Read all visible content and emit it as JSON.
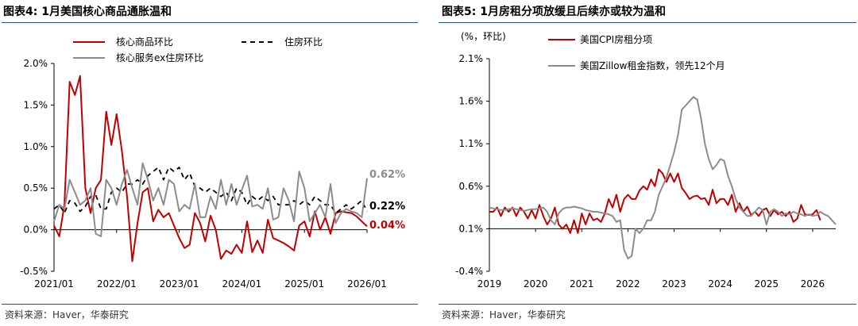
{
  "left_panel": {
    "title": "图表4:  1月美国核心商品通胀温和",
    "source": "资料来源：Haver，华泰研究"
  },
  "right_panel": {
    "title": "图表5:  1月房租分项放缓且后续亦或较为温和",
    "source": "资料来源：Haver，华泰研究"
  },
  "colors": {
    "red": "#c00000",
    "gray": "#8c8c8c",
    "black": "#000000",
    "rule": "#1f4e96"
  },
  "chart_data": [
    {
      "type": "line",
      "title": "1月美国核心商品通胀温和",
      "ylim": [
        -0.5,
        2.0
      ],
      "yticks": [
        -0.5,
        0.0,
        0.5,
        1.0,
        1.5,
        2.0
      ],
      "ytick_labels": [
        "-0.5%",
        "0.0%",
        "0.5%",
        "1.0%",
        "1.5%",
        "2.0%"
      ],
      "x_start": "2021/01",
      "xtick_labels": [
        "2021/01",
        "2022/01",
        "2023/01",
        "2024/01",
        "2025/01",
        "2026/01"
      ],
      "xtick_positions": [
        0,
        12,
        24,
        36,
        48,
        60
      ],
      "x_max": 60,
      "series": [
        {
          "name": "核心商品环比",
          "color": "#c00000",
          "style": "solid",
          "end_label": "0.04%",
          "values": [
            0.05,
            -0.08,
            0.3,
            1.78,
            1.62,
            1.85,
            0.5,
            0.2,
            0.5,
            0.6,
            1.42,
            1.02,
            1.39,
            0.95,
            0.4,
            -0.38,
            0.08,
            0.45,
            0.5,
            0.1,
            0.24,
            0.15,
            0.2,
            0.05,
            -0.1,
            -0.22,
            -0.18,
            0.2,
            0.08,
            -0.14,
            0.17,
            0.0,
            -0.35,
            -0.25,
            -0.29,
            -0.18,
            -0.28,
            0.1,
            -0.27,
            -0.13,
            -0.28,
            0.12,
            -0.1,
            -0.13,
            -0.16,
            -0.2,
            -0.25,
            0.05,
            0.1,
            -0.08,
            0.22,
            0.0,
            0.15,
            -0.05,
            0.2,
            0.22,
            0.21,
            0.2,
            0.16,
            0.1,
            0.04
          ]
        },
        {
          "name": "住房环比",
          "color": "#000000",
          "style": "dashed",
          "end_label": "0.22%",
          "values": [
            0.25,
            0.3,
            0.2,
            0.35,
            0.32,
            0.22,
            0.28,
            0.4,
            0.42,
            0.25,
            0.25,
            0.45,
            0.5,
            0.45,
            0.55,
            0.55,
            0.6,
            0.55,
            0.65,
            0.7,
            0.75,
            0.6,
            0.75,
            0.7,
            0.75,
            0.6,
            0.68,
            0.52,
            0.5,
            0.45,
            0.5,
            0.45,
            0.4,
            0.45,
            0.35,
            0.5,
            0.45,
            0.3,
            0.4,
            0.35,
            0.4,
            0.35,
            0.4,
            0.3,
            0.3,
            0.3,
            0.35,
            0.3,
            0.35,
            0.3,
            0.4,
            0.35,
            0.3,
            0.3,
            0.2,
            0.25,
            0.3,
            0.25,
            0.3,
            0.35,
            0.22
          ]
        },
        {
          "name": "核心服务ex住房环比",
          "color": "#8c8c8c",
          "style": "solid",
          "end_label": "0.62%",
          "values": [
            0.1,
            0.3,
            0.25,
            0.6,
            0.45,
            0.3,
            0.35,
            0.5,
            -0.05,
            -0.08,
            0.6,
            0.5,
            0.3,
            0.55,
            0.72,
            0.5,
            0.3,
            0.8,
            0.6,
            0.35,
            0.5,
            0.3,
            0.6,
            0.55,
            0.22,
            0.3,
            0.25,
            0.55,
            0.15,
            0.15,
            0.4,
            0.25,
            0.6,
            0.3,
            0.55,
            0.3,
            0.48,
            0.65,
            0.28,
            0.3,
            0.25,
            0.5,
            0.12,
            0.15,
            0.5,
            0.35,
            0.1,
            0.7,
            0.5,
            0.1,
            0.2,
            0.3,
            0.15,
            0.55,
            0.08,
            0.2,
            0.25,
            0.22,
            0.2,
            0.15,
            0.62
          ]
        }
      ],
      "legend": [
        "核心商品环比",
        "住房环比",
        "核心服务ex住房环比"
      ]
    },
    {
      "type": "line",
      "title": "1月房租分项放缓且后续亦或较为温和",
      "unit_label": "(%，环比)",
      "ylim": [
        -0.4,
        2.1
      ],
      "yticks": [
        -0.4,
        0.1,
        0.6,
        1.1,
        1.6,
        2.1
      ],
      "ytick_labels": [
        "-0.4%",
        "0.1%",
        "0.6%",
        "1.1%",
        "1.6%",
        "2.1%"
      ],
      "x_start": "2019/01",
      "xtick_labels": [
        "2019",
        "2020",
        "2021",
        "2022",
        "2023",
        "2024",
        "2025",
        "2026"
      ],
      "xtick_positions": [
        0,
        12,
        24,
        36,
        48,
        60,
        72,
        84
      ],
      "x_max": 90,
      "series": [
        {
          "name": "美国CPI房租分项",
          "color": "#c00000",
          "style": "solid",
          "values": [
            0.3,
            0.3,
            0.35,
            0.25,
            0.35,
            0.3,
            0.35,
            0.25,
            0.35,
            0.3,
            0.22,
            0.32,
            0.22,
            0.38,
            0.25,
            0.15,
            0.22,
            0.35,
            0.15,
            0.1,
            0.15,
            0.05,
            0.2,
            0.05,
            0.28,
            0.15,
            0.28,
            0.2,
            0.22,
            0.18,
            0.28,
            0.45,
            0.35,
            0.5,
            0.3,
            0.45,
            0.5,
            0.45,
            0.45,
            0.55,
            0.6,
            0.56,
            0.68,
            0.6,
            0.8,
            0.75,
            0.65,
            0.75,
            0.65,
            0.75,
            0.58,
            0.52,
            0.45,
            0.48,
            0.49,
            0.45,
            0.46,
            0.38,
            0.56,
            0.4,
            0.45,
            0.45,
            0.38,
            0.5,
            0.3,
            0.4,
            0.3,
            0.36,
            0.26,
            0.3,
            0.25,
            0.32,
            0.34,
            0.25,
            0.32,
            0.27,
            0.3,
            0.25,
            0.3,
            0.18,
            0.22,
            0.38,
            0.27,
            0.26,
            0.27,
            0.32,
            0.2
          ]
        },
        {
          "name": "美国Zillow租金指数，领先12个月",
          "color": "#8c8c8c",
          "style": "solid",
          "values": [
            0.35,
            0.34,
            0.33,
            0.32,
            0.32,
            0.33,
            0.34,
            0.33,
            0.32,
            0.31,
            0.32,
            0.33,
            0.33,
            0.34,
            0.35,
            0.3,
            0.2,
            0.15,
            0.28,
            0.33,
            0.35,
            0.35,
            0.36,
            0.35,
            0.34,
            0.32,
            0.31,
            0.3,
            0.3,
            0.29,
            0.28,
            0.27,
            0.25,
            0.18,
            0.2,
            -0.15,
            -0.25,
            -0.22,
            0.1,
            0.05,
            0.1,
            0.2,
            0.2,
            0.3,
            0.5,
            0.6,
            0.7,
            0.85,
            1.0,
            1.2,
            1.5,
            1.55,
            1.6,
            1.65,
            1.62,
            1.4,
            1.1,
            0.92,
            0.8,
            0.85,
            0.92,
            0.9,
            0.72,
            0.6,
            0.45,
            0.35,
            0.3,
            0.25,
            0.25,
            0.3,
            0.35,
            0.32,
            0.15,
            0.3,
            0.33,
            0.3,
            0.25,
            0.28,
            0.27,
            0.3,
            0.28,
            0.27,
            0.25,
            0.27,
            0.25,
            0.26,
            0.3,
            0.27,
            0.25,
            0.2,
            0.15
          ]
        }
      ],
      "legend": [
        "美国CPI房租分项",
        "美国Zillow租金指数，领先12个月"
      ]
    }
  ]
}
